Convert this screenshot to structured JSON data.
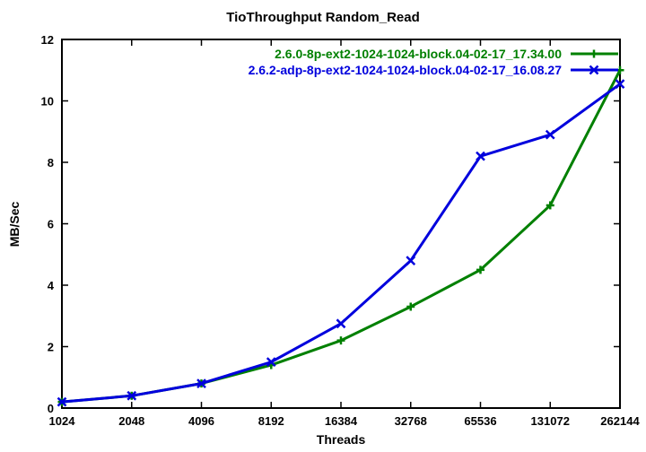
{
  "window": {
    "background_color": "#ffffff",
    "text_color": "#000000"
  },
  "chart_data": {
    "type": "line",
    "title": "TioThroughput Random_Read",
    "xlabel": "Threads",
    "ylabel": "MB/Sec",
    "x_scale": "log2",
    "categories": [
      "1024",
      "2048",
      "4096",
      "8192",
      "16384",
      "32768",
      "65536",
      "131072",
      "262144"
    ],
    "y_ticks": [
      0,
      2,
      4,
      6,
      8,
      10,
      12
    ],
    "ylim": [
      0,
      12
    ],
    "grid": false,
    "legend_position": "top-right-inside",
    "series": [
      {
        "name": "2.6.0-8p-ext2-1024-1024-block.04-02-17_17.34.00",
        "color": "#008000",
        "marker": "plus",
        "values": [
          0.2,
          0.4,
          0.8,
          1.4,
          2.2,
          3.3,
          4.5,
          6.6,
          11.0
        ]
      },
      {
        "name": "2.6.2-adp-8p-ext2-1024-1024-block.04-02-17_16.08.27",
        "color": "#0000dd",
        "marker": "cross",
        "values": [
          0.2,
          0.4,
          0.8,
          1.5,
          2.75,
          4.8,
          8.2,
          8.9,
          10.55
        ]
      }
    ]
  }
}
